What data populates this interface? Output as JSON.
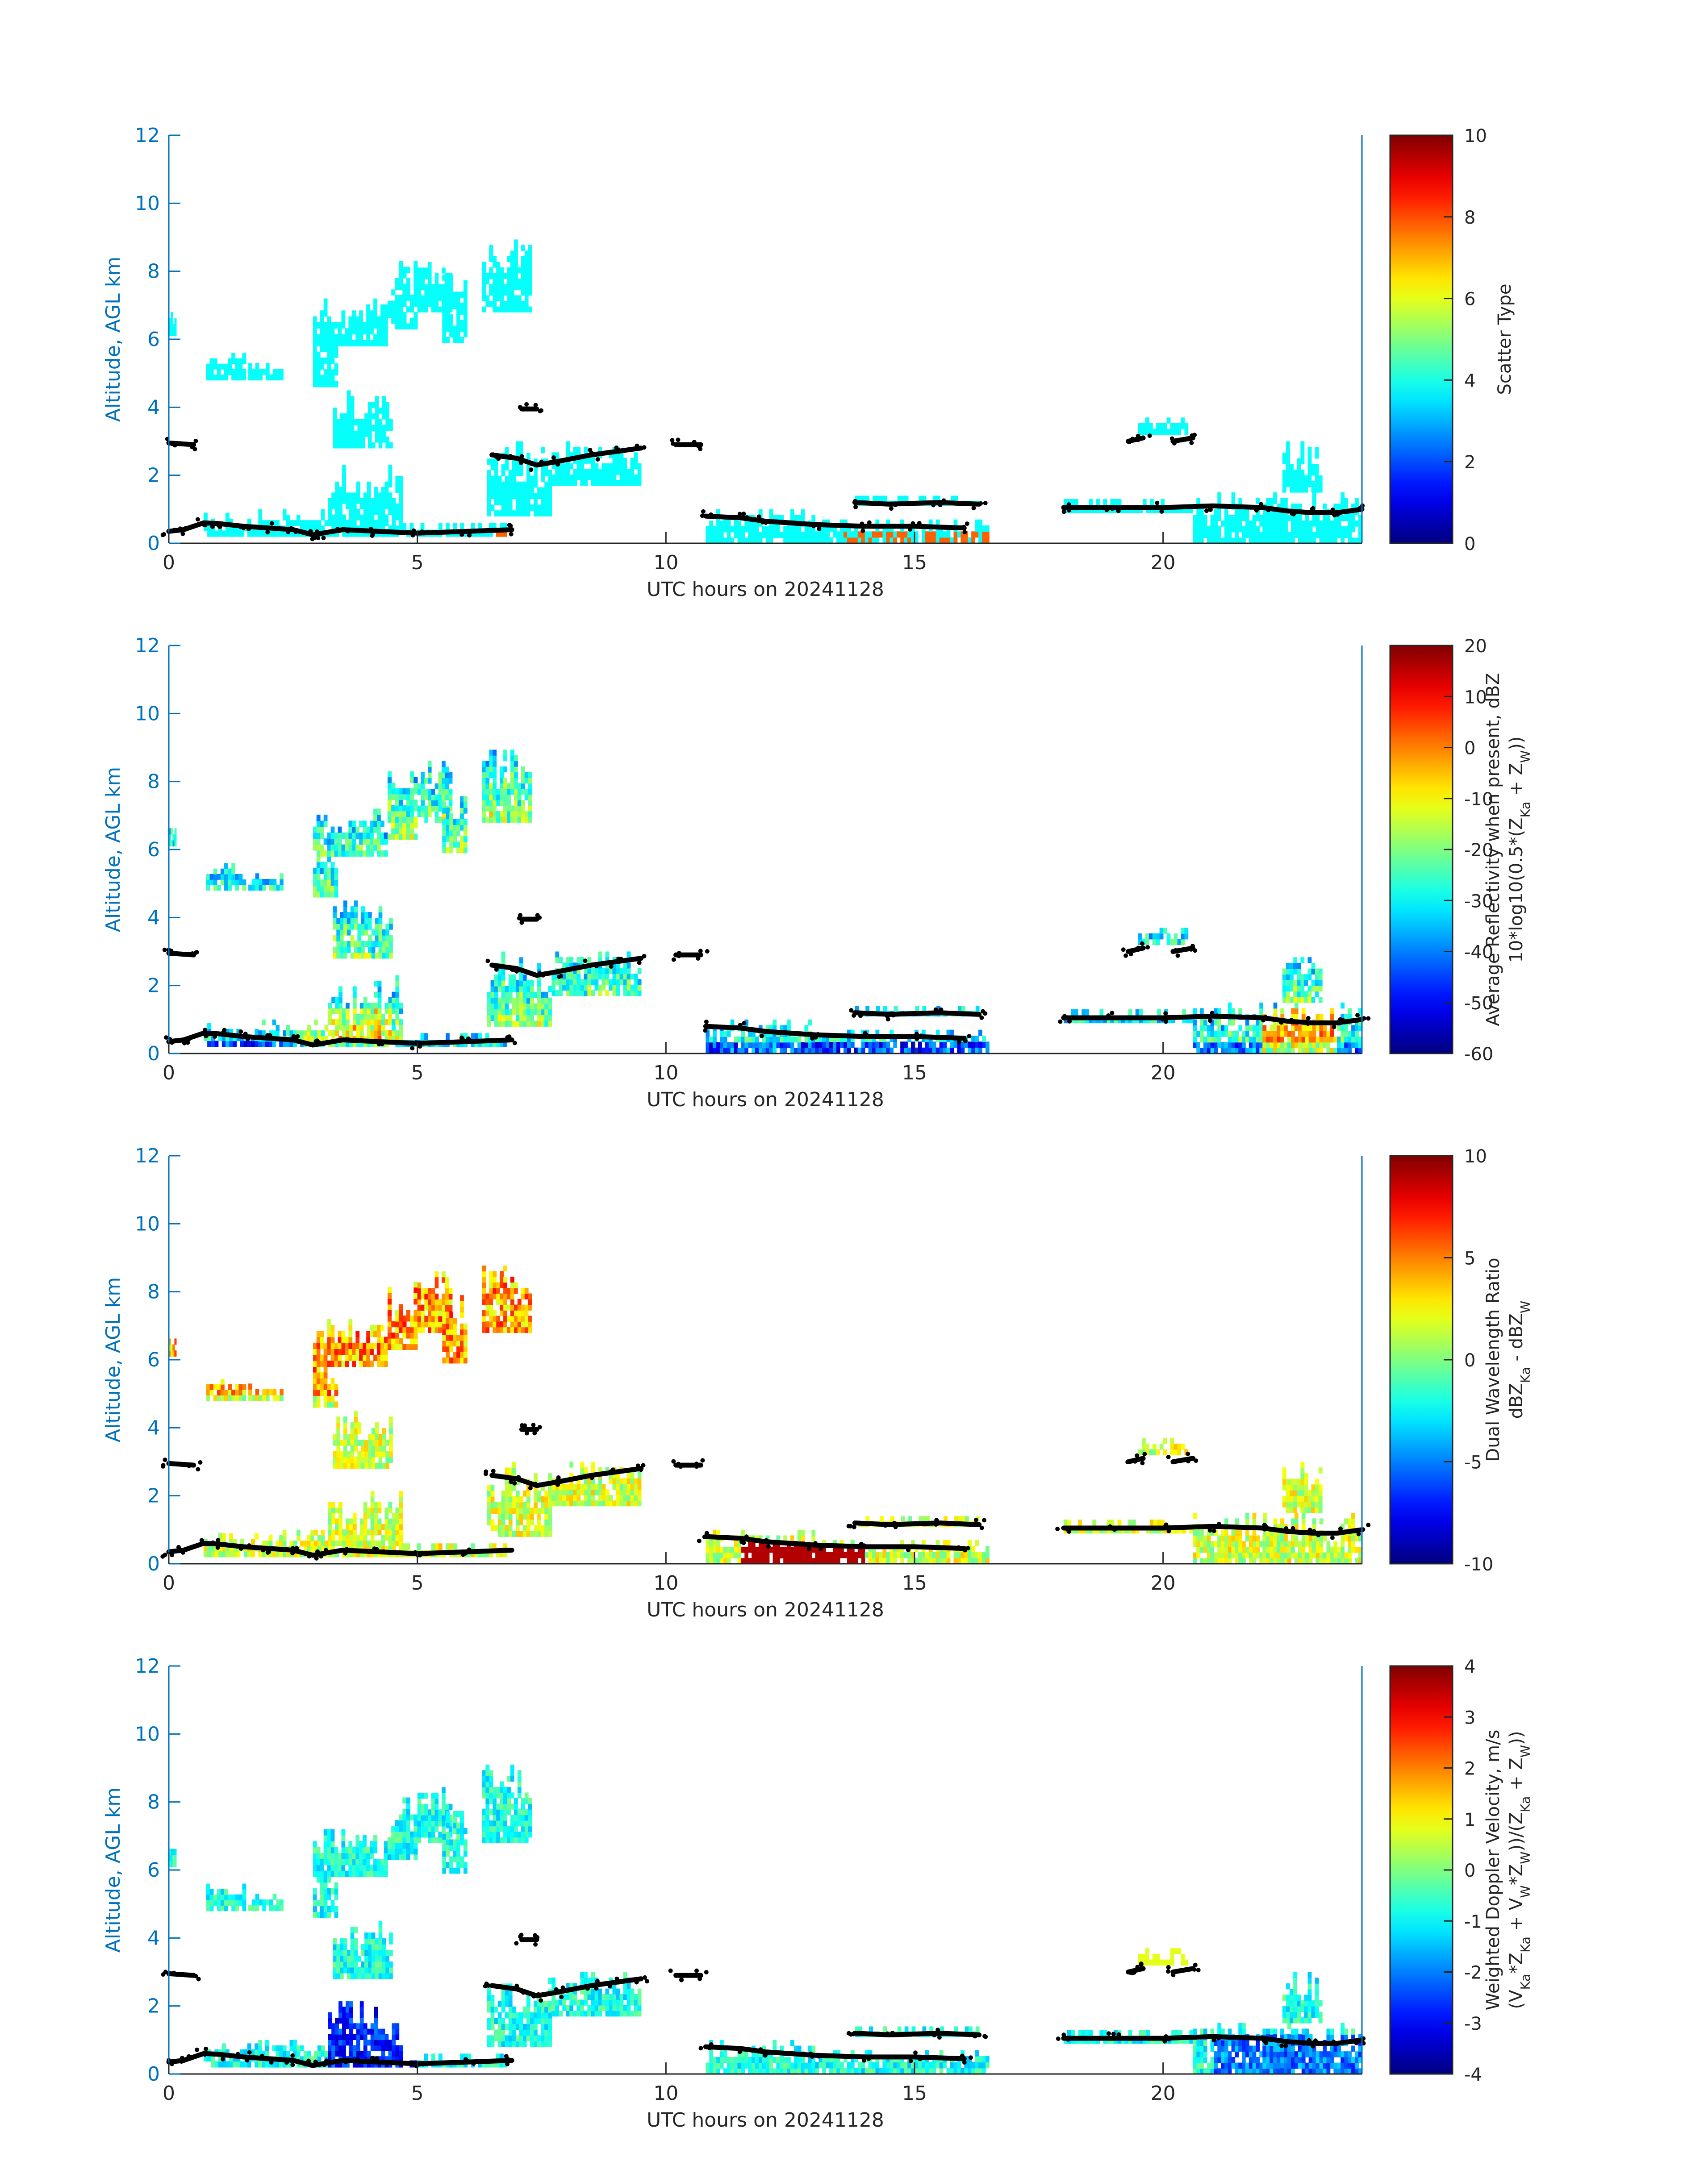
{
  "figure": {
    "colors": {
      "axis_left": "#0072bd",
      "axis_bottom": "#262626",
      "text": "#262626",
      "cloud_cyan": "#2ef5d8",
      "melting_layer": "#000000"
    },
    "colormap": "jet"
  },
  "chart_data": [
    {
      "type": "heatmap",
      "xlabel": "UTC hours on 20241128",
      "ylabel": "Altitude, AGL km",
      "xlim": [
        0,
        24
      ],
      "ylim": [
        0,
        12
      ],
      "xticks": [
        "0",
        "5",
        "10",
        "15",
        "20"
      ],
      "yticks": [
        "0",
        "2",
        "4",
        "6",
        "8",
        "10",
        "12"
      ],
      "colorbar": {
        "label": [
          "Scatter Type"
        ],
        "range": [
          0,
          10
        ],
        "ticks": [
          "0",
          "2",
          "4",
          "6",
          "8",
          "10"
        ]
      },
      "variable": "scatter_type"
    },
    {
      "type": "heatmap",
      "xlabel": "UTC hours on 20241128",
      "ylabel": "Altitude, AGL km",
      "xlim": [
        0,
        24
      ],
      "ylim": [
        0,
        12
      ],
      "xticks": [
        "0",
        "5",
        "10",
        "15",
        "20"
      ],
      "yticks": [
        "0",
        "2",
        "4",
        "6",
        "8",
        "10",
        "12"
      ],
      "colorbar": {
        "label": [
          "Average Reflectivity when present, dBZ",
          "10*log10(0.5*(Z_Ka + Z_W))"
        ],
        "range": [
          -60,
          20
        ],
        "ticks": [
          "-60",
          "-50",
          "-40",
          "-30",
          "-20",
          "-10",
          "0",
          "10",
          "20"
        ]
      },
      "variable": "reflectivity"
    },
    {
      "type": "heatmap",
      "xlabel": "UTC hours on 20241128",
      "ylabel": "Altitude, AGL km",
      "xlim": [
        0,
        24
      ],
      "ylim": [
        0,
        12
      ],
      "xticks": [
        "0",
        "5",
        "10",
        "15",
        "20"
      ],
      "yticks": [
        "0",
        "2",
        "4",
        "6",
        "8",
        "10",
        "12"
      ],
      "colorbar": {
        "label": [
          "Dual Wavelength Ratio",
          "dBZ_Ka - dBZ_W"
        ],
        "range": [
          -10,
          10
        ],
        "ticks": [
          "-10",
          "-5",
          "0",
          "5",
          "10"
        ]
      },
      "variable": "dwr"
    },
    {
      "type": "heatmap",
      "xlabel": "UTC hours on 20241128",
      "ylabel": "Altitude, AGL km",
      "xlim": [
        0,
        24
      ],
      "ylim": [
        0,
        12
      ],
      "xticks": [
        "0",
        "5",
        "10",
        "15",
        "20"
      ],
      "yticks": [
        "0",
        "2",
        "4",
        "6",
        "8",
        "10",
        "12"
      ],
      "colorbar": {
        "label": [
          "Weighted Doppler Velocity, m/s",
          "(V_Ka*Z_Ka + V_W*Z_W))/(Z_Ka + Z_W))"
        ],
        "range": [
          -4,
          4
        ],
        "ticks": [
          "-4",
          "-3",
          "-2",
          "-1",
          "0",
          "1",
          "2",
          "3",
          "4"
        ]
      },
      "variable": "doppler"
    }
  ],
  "cloud_regions": [
    {
      "t0": 0.0,
      "t1": 0.15,
      "z0": 6.1,
      "z1": 6.8
    },
    {
      "t0": 0.75,
      "t1": 1.55,
      "z0": 4.8,
      "z1": 5.6
    },
    {
      "t0": 1.6,
      "t1": 2.3,
      "z0": 4.8,
      "z1": 5.3
    },
    {
      "t0": 2.9,
      "t1": 3.4,
      "z0": 4.6,
      "z1": 6.5
    },
    {
      "t0": 2.9,
      "t1": 4.4,
      "z0": 5.8,
      "z1": 7.2
    },
    {
      "t0": 3.3,
      "t1": 4.5,
      "z0": 2.8,
      "z1": 4.5
    },
    {
      "t0": 4.4,
      "t1": 5.0,
      "z0": 6.3,
      "z1": 8.3
    },
    {
      "t0": 5.0,
      "t1": 5.7,
      "z0": 6.8,
      "z1": 8.6
    },
    {
      "t0": 5.5,
      "t1": 6.0,
      "z0": 5.9,
      "z1": 7.9
    },
    {
      "t0": 6.3,
      "t1": 7.3,
      "z0": 6.8,
      "z1": 9.1
    },
    {
      "t0": 0.7,
      "t1": 1.8,
      "z0": 0.2,
      "z1": 0.9
    },
    {
      "t0": 1.8,
      "t1": 3.2,
      "z0": 0.2,
      "z1": 1.0
    },
    {
      "t0": 3.2,
      "t1": 4.7,
      "z0": 0.2,
      "z1": 2.3
    },
    {
      "t0": 4.7,
      "t1": 6.8,
      "z0": 0.2,
      "z1": 0.6
    },
    {
      "t0": 6.4,
      "t1": 7.7,
      "z0": 0.8,
      "z1": 3.0
    },
    {
      "t0": 7.7,
      "t1": 9.5,
      "z0": 1.7,
      "z1": 3.0
    },
    {
      "t0": 10.8,
      "t1": 13.0,
      "z0": 0.0,
      "z1": 1.0
    },
    {
      "t0": 13.0,
      "t1": 16.5,
      "z0": 0.0,
      "z1": 0.7
    },
    {
      "t0": 13.8,
      "t1": 16.3,
      "z0": 1.1,
      "z1": 1.4
    },
    {
      "t0": 18.0,
      "t1": 20.6,
      "z0": 0.9,
      "z1": 1.3
    },
    {
      "t0": 19.5,
      "t1": 20.5,
      "z0": 3.2,
      "z1": 3.7
    },
    {
      "t0": 20.6,
      "t1": 22.5,
      "z0": 0.0,
      "z1": 1.5
    },
    {
      "t0": 22.0,
      "t1": 24.0,
      "z0": 0.0,
      "z1": 1.5
    },
    {
      "t0": 22.4,
      "t1": 23.2,
      "z0": 1.5,
      "z1": 3.0
    }
  ],
  "melting_layer": [
    [
      0.0,
      0.35
    ],
    [
      0.3,
      0.4
    ],
    [
      0.7,
      0.6
    ],
    [
      1.0,
      0.58
    ],
    [
      1.5,
      0.5
    ],
    [
      2.0,
      0.45
    ],
    [
      2.5,
      0.4
    ],
    [
      2.9,
      0.25
    ],
    [
      3.1,
      0.3
    ],
    [
      3.5,
      0.4
    ],
    [
      4.2,
      0.35
    ],
    [
      5.0,
      0.3
    ],
    [
      6.0,
      0.35
    ],
    [
      6.9,
      0.4
    ],
    null,
    [
      6.5,
      2.6
    ],
    [
      7.0,
      2.5
    ],
    [
      7.4,
      2.3
    ],
    [
      7.8,
      2.4
    ],
    [
      8.5,
      2.6
    ],
    [
      9.0,
      2.7
    ],
    [
      9.5,
      2.8
    ],
    null,
    [
      10.8,
      0.8
    ],
    [
      11.5,
      0.75
    ],
    [
      12.0,
      0.65
    ],
    [
      13.0,
      0.55
    ],
    [
      14.0,
      0.5
    ],
    [
      15.0,
      0.5
    ],
    [
      16.0,
      0.45
    ],
    null,
    [
      13.8,
      1.2
    ],
    [
      14.5,
      1.15
    ],
    [
      15.5,
      1.2
    ],
    [
      16.3,
      1.15
    ],
    null,
    [
      18.0,
      1.05
    ],
    [
      19.0,
      1.05
    ],
    [
      20.0,
      1.05
    ],
    [
      21.0,
      1.1
    ],
    [
      22.0,
      1.05
    ],
    [
      22.5,
      0.95
    ],
    [
      23.0,
      0.9
    ],
    [
      23.5,
      0.9
    ],
    [
      24.0,
      1.0
    ],
    null,
    [
      0.0,
      2.95
    ],
    [
      0.5,
      2.9
    ],
    null,
    [
      7.1,
      3.95
    ],
    [
      7.4,
      3.95
    ],
    null,
    [
      10.2,
      2.9
    ],
    [
      10.7,
      2.9
    ],
    null,
    [
      19.3,
      3.0
    ],
    [
      19.6,
      3.1
    ],
    null,
    [
      20.2,
      3.0
    ],
    [
      20.6,
      3.1
    ]
  ]
}
